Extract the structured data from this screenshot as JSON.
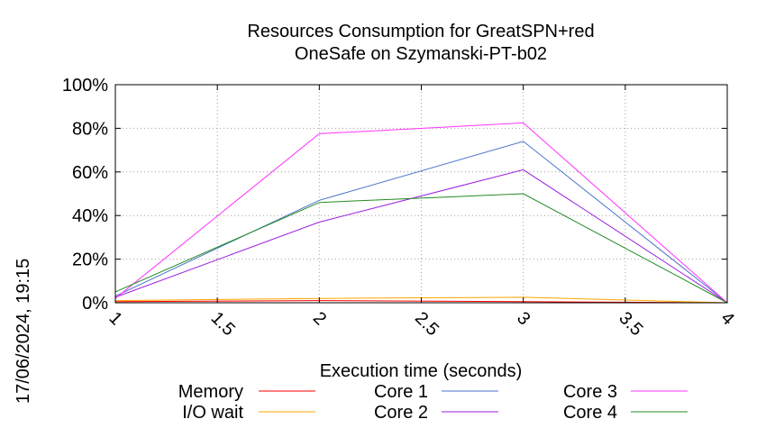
{
  "chart_data": {
    "type": "line",
    "title": "Resources Consumption for GreatSPN+red",
    "subtitle": "OneSafe on Szymanski-PT-b02",
    "xlabel": "Execution time (seconds)",
    "ylabel": "",
    "timestamp": "17/06/2024, 19:15",
    "xlim": [
      1,
      4
    ],
    "ylim": [
      0,
      100
    ],
    "x_ticks": [
      "1",
      "1.5",
      "2",
      "2.5",
      "3",
      "3.5",
      "4"
    ],
    "y_ticks": [
      "0%",
      "20%",
      "40%",
      "60%",
      "80%",
      "100%"
    ],
    "grid": true,
    "legend_position": "bottom",
    "x": [
      1,
      2,
      3,
      4
    ],
    "series": [
      {
        "name": "Memory",
        "color": "#ff0000",
        "values": [
          0.5,
          1,
          0.5,
          0
        ]
      },
      {
        "name": "I/O wait",
        "color": "#ffa500",
        "values": [
          1,
          2,
          2.5,
          0
        ]
      },
      {
        "name": "Core 1",
        "color": "#4a72c9",
        "values": [
          3,
          47,
          74,
          0
        ]
      },
      {
        "name": "Core 2",
        "color": "#9a1fe0",
        "values": [
          2.5,
          37,
          61,
          0
        ]
      },
      {
        "name": "Core 3",
        "color": "#ff33ff",
        "values": [
          2,
          77.5,
          82.5,
          0
        ]
      },
      {
        "name": "Core 4",
        "color": "#228b22",
        "values": [
          5,
          46,
          50,
          0
        ]
      }
    ]
  }
}
